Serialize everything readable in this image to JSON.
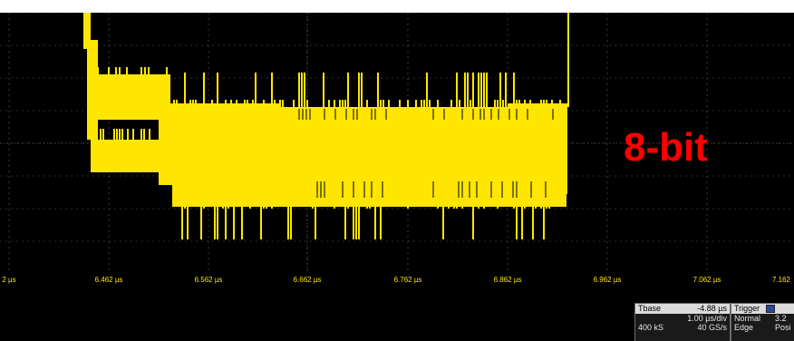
{
  "scope": {
    "time_axis": {
      "tick_labels": [
        "2 µs",
        "6.462 µs",
        "6.562 µs",
        "6.662 µs",
        "6.762 µs",
        "6.862 µs",
        "6.962 µs",
        "7.062 µs",
        "7.162"
      ]
    },
    "overlay_label": "8-bit",
    "trace_color": "#ffe600",
    "overlay_color": "#ff0000",
    "timebase": {
      "title": "Tbase",
      "offset": "-4.88 µs",
      "per_div": "1.00 µs/div",
      "samples": "400 kS",
      "rate": "40 GS/s"
    },
    "trigger": {
      "title": "Trigger",
      "mode": "Normal",
      "level": "3.2",
      "type": "Edge",
      "slope": "Posi"
    }
  }
}
